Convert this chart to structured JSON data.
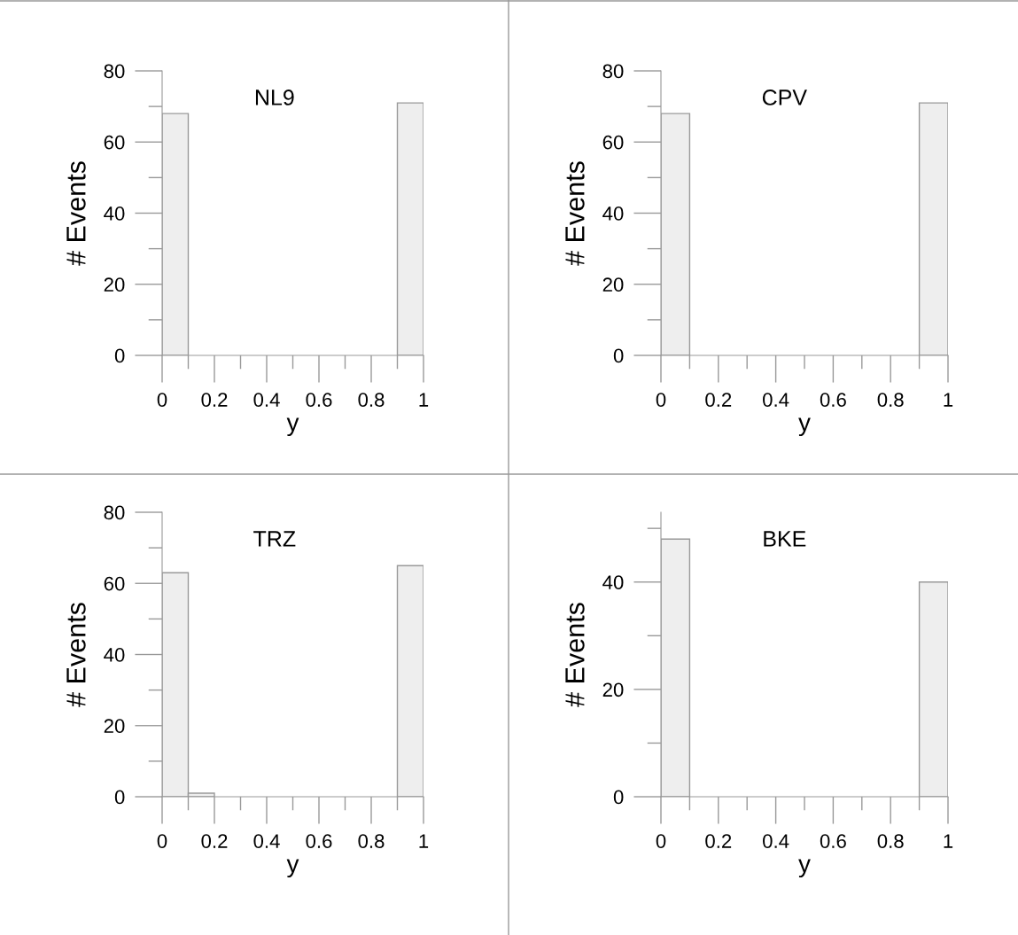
{
  "chart_data": [
    {
      "type": "histogram",
      "title": "NL9",
      "xlabel": "y",
      "ylabel": "# Events",
      "bins": [
        0,
        0.1,
        0.2,
        0.3,
        0.4,
        0.5,
        0.6,
        0.7,
        0.8,
        0.9,
        1
      ],
      "values": [
        68,
        0,
        0,
        0,
        0,
        0,
        0,
        0,
        0,
        71
      ],
      "color": "#eeeeee",
      "xlim": [
        0,
        1
      ],
      "ylim": [
        0,
        80
      ],
      "xticks": [
        0,
        {
          "value": 0.1,
          "label": null
        },
        0.2,
        {
          "value": 0.3,
          "label": null
        },
        0.4,
        {
          "value": 0.5,
          "label": null
        },
        0.6,
        {
          "value": 0.7,
          "label": null
        },
        0.8,
        {
          "value": 0.9,
          "label": null
        },
        1
      ],
      "yticks": [
        0,
        {
          "value": 10,
          "label": null
        },
        20,
        {
          "value": 30,
          "label": null
        },
        40,
        {
          "value": 50,
          "label": null
        },
        60,
        {
          "value": 70,
          "label": null
        },
        80
      ],
      "grid": false
    },
    {
      "type": "histogram",
      "title": "CPV",
      "xlabel": "y",
      "ylabel": "# Events",
      "bins": [
        0,
        0.1,
        0.2,
        0.3,
        0.4,
        0.5,
        0.6,
        0.7,
        0.8,
        0.9,
        1
      ],
      "values": [
        68,
        0,
        0,
        0,
        0,
        0,
        0,
        0,
        0,
        71
      ],
      "color": "#eeeeee",
      "xlim": [
        0,
        1
      ],
      "ylim": [
        0,
        80
      ],
      "xticks": [
        0,
        {
          "value": 0.1,
          "label": null
        },
        0.2,
        {
          "value": 0.3,
          "label": null
        },
        0.4,
        {
          "value": 0.5,
          "label": null
        },
        0.6,
        {
          "value": 0.7,
          "label": null
        },
        0.8,
        {
          "value": 0.9,
          "label": null
        },
        1
      ],
      "yticks": [
        0,
        {
          "value": 10,
          "label": null
        },
        20,
        {
          "value": 30,
          "label": null
        },
        40,
        {
          "value": 50,
          "label": null
        },
        60,
        {
          "value": 70,
          "label": null
        },
        80
      ],
      "grid": false
    },
    {
      "type": "histogram",
      "title": "TRZ",
      "xlabel": "y",
      "ylabel": "# Events",
      "bins": [
        0,
        0.1,
        0.2,
        0.3,
        0.4,
        0.5,
        0.6,
        0.7,
        0.8,
        0.9,
        1
      ],
      "values": [
        63,
        1,
        0,
        0,
        0,
        0,
        0,
        0,
        0,
        65
      ],
      "color": "#eeeeee",
      "xlim": [
        0,
        1
      ],
      "ylim": [
        0,
        80
      ],
      "xticks": [
        0,
        {
          "value": 0.1,
          "label": null
        },
        0.2,
        {
          "value": 0.3,
          "label": null
        },
        0.4,
        {
          "value": 0.5,
          "label": null
        },
        0.6,
        {
          "value": 0.7,
          "label": null
        },
        0.8,
        {
          "value": 0.9,
          "label": null
        },
        1
      ],
      "yticks": [
        0,
        {
          "value": 10,
          "label": null
        },
        20,
        {
          "value": 30,
          "label": null
        },
        40,
        {
          "value": 50,
          "label": null
        },
        60,
        {
          "value": 70,
          "label": null
        },
        80
      ],
      "grid": false
    },
    {
      "type": "histogram",
      "title": "BKE",
      "xlabel": "y",
      "ylabel": "# Events",
      "bins": [
        0,
        0.1,
        0.2,
        0.3,
        0.4,
        0.5,
        0.6,
        0.7,
        0.8,
        0.9,
        1
      ],
      "values": [
        48,
        0,
        0,
        0,
        0,
        0,
        0,
        0,
        0,
        40
      ],
      "color": "#eeeeee",
      "xlim": [
        0,
        1
      ],
      "ylim": [
        0,
        53
      ],
      "xticks": [
        0,
        {
          "value": 0.1,
          "label": null
        },
        0.2,
        {
          "value": 0.3,
          "label": null
        },
        0.4,
        {
          "value": 0.5,
          "label": null
        },
        0.6,
        {
          "value": 0.7,
          "label": null
        },
        0.8,
        {
          "value": 0.9,
          "label": null
        },
        1
      ],
      "yticks": [
        0,
        {
          "value": 10,
          "label": null
        },
        20,
        {
          "value": 30,
          "label": null
        },
        40,
        {
          "value": 50,
          "label": null
        }
      ],
      "grid": false
    }
  ]
}
